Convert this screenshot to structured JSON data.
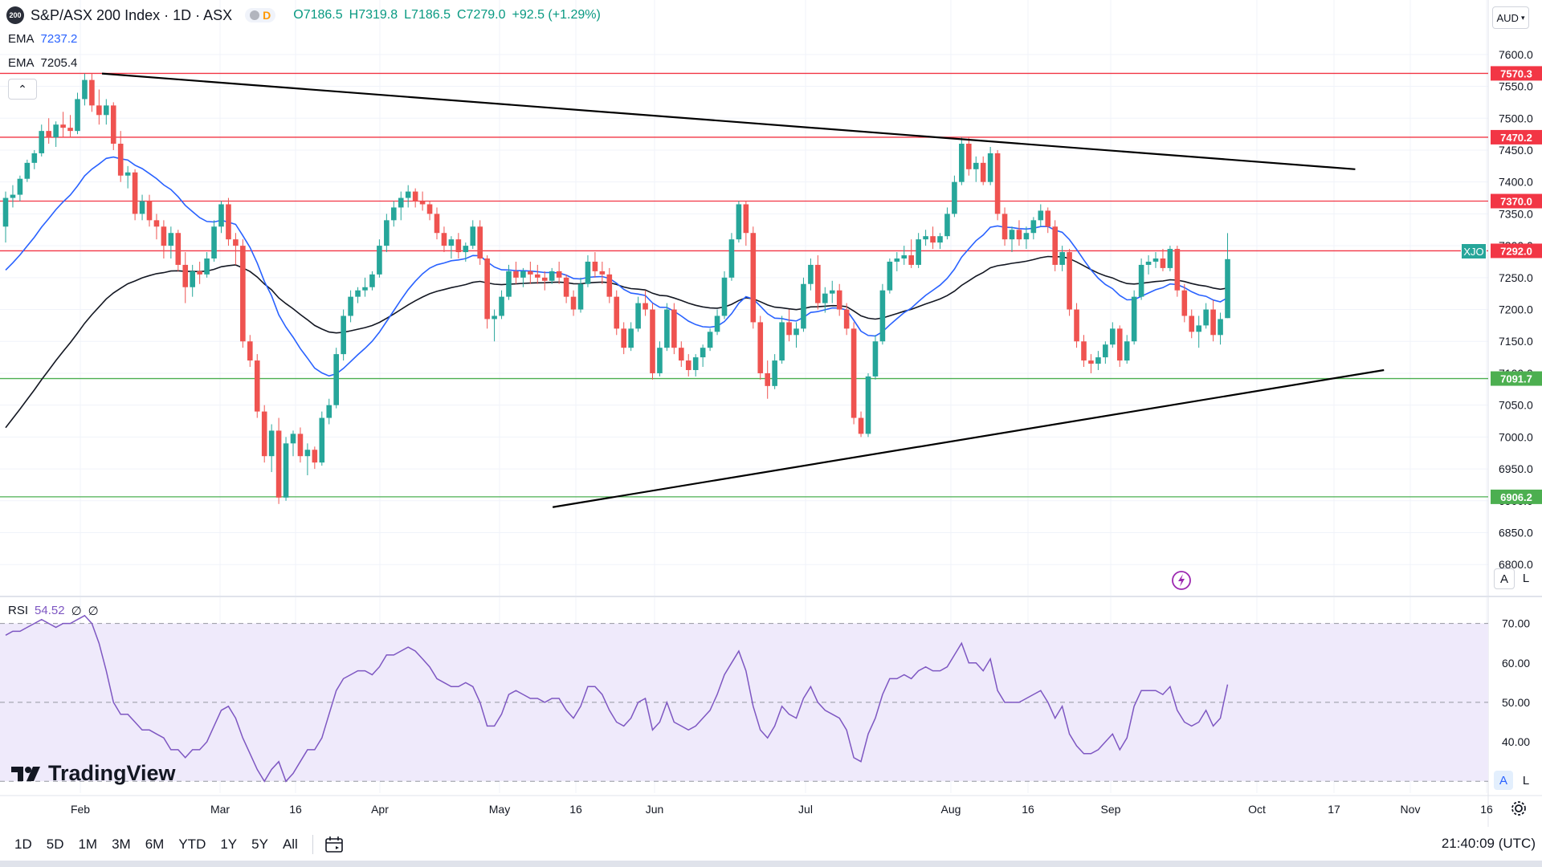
{
  "header": {
    "logo": "200",
    "title": "S&P/ASX 200 Index · 1D · ASX",
    "mode_badge": "D",
    "open": "O7186.5",
    "high": "H7319.8",
    "low": "L7186.5",
    "close": "C7279.0",
    "change": "+92.5 (+1.29%)"
  },
  "indicators": {
    "ema1_label": "EMA",
    "ema1_value": "7237.2",
    "ema2_label": "EMA",
    "ema2_value": "7205.4",
    "rsi_label": "RSI",
    "rsi_value": "54.52",
    "rsi_extra1": "∅",
    "rsi_extra2": "∅",
    "collapse_glyph": "⌃"
  },
  "currency": "AUD",
  "symbol_tag": "XJO",
  "toolbar": {
    "timeframes": [
      "1D",
      "5D",
      "1M",
      "3M",
      "6M",
      "YTD",
      "1Y",
      "5Y",
      "All"
    ],
    "clock": "21:40:09 (UTC)"
  },
  "brand": "TradingView",
  "buttons": {
    "auto": "A",
    "log": "L"
  },
  "colors": {
    "up": "#26a69a",
    "down": "#ef5350",
    "ema_fast": "#2962ff",
    "ema_slow": "#131722",
    "resistance": "#f23645",
    "support": "#4caf50",
    "rsi": "#7e57c2",
    "rsi_band": "#efeafb"
  },
  "chart_data": {
    "type": "candlestick",
    "ylim": [
      6760,
      7630
    ],
    "yticks": [
      6800,
      6850,
      6900,
      6950,
      7000,
      7050,
      7100,
      7150,
      7200,
      7250,
      7300,
      7350,
      7400,
      7450,
      7500,
      7550,
      7600
    ],
    "xticks": [
      "Feb",
      "Mar",
      "16",
      "Apr",
      "May",
      "16",
      "Jun",
      "Jul",
      "Aug",
      "16",
      "Sep",
      "Oct",
      "17",
      "Nov",
      "16"
    ],
    "horizontal_levels": [
      {
        "value": 7570.3,
        "label": "7570.3",
        "kind": "resistance"
      },
      {
        "value": 7470.2,
        "label": "7470.2",
        "kind": "resistance"
      },
      {
        "value": 7370.0,
        "label": "7370.0",
        "kind": "resistance"
      },
      {
        "value": 7292.0,
        "label": "7292.0",
        "kind": "resistance"
      },
      {
        "value": 7091.7,
        "label": "7091.7",
        "kind": "support"
      },
      {
        "value": 6906.2,
        "label": "6906.2",
        "kind": "support"
      }
    ],
    "trendlines": [
      {
        "from": [
          0,
          7570
        ],
        "to": [
          171,
          7420
        ]
      },
      {
        "from": [
          37,
          6890
        ],
        "to": [
          175,
          7105
        ]
      }
    ],
    "candles": [
      [
        7330,
        7385,
        7305,
        7375
      ],
      [
        7375,
        7395,
        7360,
        7380
      ],
      [
        7380,
        7410,
        7370,
        7405
      ],
      [
        7405,
        7435,
        7400,
        7430
      ],
      [
        7430,
        7450,
        7420,
        7445
      ],
      [
        7445,
        7490,
        7440,
        7480
      ],
      [
        7480,
        7500,
        7460,
        7470
      ],
      [
        7470,
        7495,
        7455,
        7490
      ],
      [
        7490,
        7510,
        7470,
        7485
      ],
      [
        7485,
        7505,
        7470,
        7480
      ],
      [
        7480,
        7540,
        7475,
        7530
      ],
      [
        7530,
        7570,
        7520,
        7560
      ],
      [
        7560,
        7570,
        7510,
        7520
      ],
      [
        7520,
        7545,
        7490,
        7505
      ],
      [
        7505,
        7530,
        7490,
        7520
      ],
      [
        7520,
        7525,
        7450,
        7460
      ],
      [
        7460,
        7480,
        7400,
        7410
      ],
      [
        7410,
        7425,
        7390,
        7415
      ],
      [
        7415,
        7420,
        7340,
        7350
      ],
      [
        7350,
        7380,
        7340,
        7370
      ],
      [
        7370,
        7380,
        7330,
        7340
      ],
      [
        7340,
        7350,
        7310,
        7330
      ],
      [
        7330,
        7340,
        7280,
        7300
      ],
      [
        7300,
        7330,
        7280,
        7320
      ],
      [
        7320,
        7325,
        7260,
        7270
      ],
      [
        7270,
        7290,
        7210,
        7235
      ],
      [
        7235,
        7270,
        7220,
        7260
      ],
      [
        7260,
        7275,
        7240,
        7255
      ],
      [
        7255,
        7290,
        7250,
        7280
      ],
      [
        7280,
        7340,
        7275,
        7330
      ],
      [
        7330,
        7370,
        7320,
        7365
      ],
      [
        7365,
        7375,
        7300,
        7310
      ],
      [
        7310,
        7320,
        7270,
        7300
      ],
      [
        7300,
        7310,
        7140,
        7150
      ],
      [
        7150,
        7160,
        7110,
        7120
      ],
      [
        7120,
        7130,
        7030,
        7040
      ],
      [
        7040,
        7050,
        6960,
        6970
      ],
      [
        6970,
        7020,
        6945,
        7010
      ],
      [
        7010,
        7030,
        6895,
        6905
      ],
      [
        6905,
        7000,
        6900,
        6990
      ],
      [
        6990,
        7010,
        6970,
        7005
      ],
      [
        7005,
        7015,
        6960,
        6970
      ],
      [
        6970,
        6990,
        6940,
        6980
      ],
      [
        6980,
        6985,
        6950,
        6960
      ],
      [
        6960,
        7040,
        6955,
        7030
      ],
      [
        7030,
        7060,
        7020,
        7050
      ],
      [
        7050,
        7140,
        7045,
        7130
      ],
      [
        7130,
        7200,
        7120,
        7190
      ],
      [
        7190,
        7230,
        7180,
        7220
      ],
      [
        7220,
        7235,
        7210,
        7230
      ],
      [
        7230,
        7250,
        7220,
        7235
      ],
      [
        7235,
        7260,
        7230,
        7255
      ],
      [
        7255,
        7310,
        7250,
        7300
      ],
      [
        7300,
        7350,
        7290,
        7340
      ],
      [
        7340,
        7370,
        7330,
        7360
      ],
      [
        7360,
        7385,
        7340,
        7375
      ],
      [
        7375,
        7395,
        7360,
        7385
      ],
      [
        7385,
        7390,
        7360,
        7370
      ],
      [
        7370,
        7385,
        7355,
        7365
      ],
      [
        7365,
        7370,
        7340,
        7350
      ],
      [
        7350,
        7360,
        7310,
        7320
      ],
      [
        7320,
        7330,
        7290,
        7300
      ],
      [
        7300,
        7315,
        7280,
        7310
      ],
      [
        7310,
        7320,
        7280,
        7290
      ],
      [
        7290,
        7305,
        7275,
        7300
      ],
      [
        7300,
        7340,
        7295,
        7330
      ],
      [
        7330,
        7340,
        7270,
        7280
      ],
      [
        7280,
        7285,
        7170,
        7185
      ],
      [
        7185,
        7200,
        7150,
        7190
      ],
      [
        7190,
        7230,
        7185,
        7220
      ],
      [
        7220,
        7270,
        7215,
        7260
      ],
      [
        7260,
        7275,
        7240,
        7250
      ],
      [
        7250,
        7265,
        7235,
        7260
      ],
      [
        7260,
        7275,
        7240,
        7255
      ],
      [
        7255,
        7270,
        7240,
        7250
      ],
      [
        7250,
        7260,
        7230,
        7245
      ],
      [
        7245,
        7265,
        7240,
        7260
      ],
      [
        7260,
        7275,
        7240,
        7250
      ],
      [
        7250,
        7255,
        7210,
        7220
      ],
      [
        7220,
        7230,
        7190,
        7200
      ],
      [
        7200,
        7250,
        7195,
        7240
      ],
      [
        7240,
        7285,
        7235,
        7275
      ],
      [
        7275,
        7290,
        7250,
        7260
      ],
      [
        7260,
        7275,
        7240,
        7255
      ],
      [
        7255,
        7265,
        7210,
        7220
      ],
      [
        7220,
        7230,
        7160,
        7170
      ],
      [
        7170,
        7180,
        7130,
        7140
      ],
      [
        7140,
        7180,
        7135,
        7170
      ],
      [
        7170,
        7220,
        7165,
        7210
      ],
      [
        7210,
        7230,
        7190,
        7200
      ],
      [
        7200,
        7210,
        7090,
        7100
      ],
      [
        7100,
        7150,
        7095,
        7140
      ],
      [
        7140,
        7210,
        7135,
        7200
      ],
      [
        7200,
        7210,
        7130,
        7140
      ],
      [
        7140,
        7150,
        7110,
        7120
      ],
      [
        7120,
        7130,
        7095,
        7105
      ],
      [
        7105,
        7130,
        7095,
        7125
      ],
      [
        7125,
        7145,
        7110,
        7140
      ],
      [
        7140,
        7170,
        7135,
        7165
      ],
      [
        7165,
        7200,
        7160,
        7190
      ],
      [
        7190,
        7260,
        7185,
        7250
      ],
      [
        7250,
        7320,
        7245,
        7310
      ],
      [
        7310,
        7370,
        7305,
        7365
      ],
      [
        7365,
        7370,
        7300,
        7320
      ],
      [
        7320,
        7330,
        7170,
        7180
      ],
      [
        7180,
        7190,
        7090,
        7100
      ],
      [
        7100,
        7120,
        7060,
        7080
      ],
      [
        7080,
        7130,
        7075,
        7120
      ],
      [
        7120,
        7190,
        7115,
        7180
      ],
      [
        7180,
        7200,
        7150,
        7160
      ],
      [
        7160,
        7180,
        7140,
        7170
      ],
      [
        7170,
        7250,
        7165,
        7240
      ],
      [
        7240,
        7280,
        7230,
        7270
      ],
      [
        7270,
        7285,
        7200,
        7210
      ],
      [
        7210,
        7235,
        7195,
        7225
      ],
      [
        7225,
        7245,
        7210,
        7230
      ],
      [
        7230,
        7240,
        7190,
        7200
      ],
      [
        7200,
        7210,
        7160,
        7170
      ],
      [
        7170,
        7180,
        7020,
        7030
      ],
      [
        7030,
        7040,
        7000,
        7005
      ],
      [
        7005,
        7100,
        7000,
        7095
      ],
      [
        7095,
        7160,
        7090,
        7150
      ],
      [
        7150,
        7240,
        7145,
        7230
      ],
      [
        7230,
        7280,
        7225,
        7275
      ],
      [
        7275,
        7290,
        7260,
        7280
      ],
      [
        7280,
        7300,
        7270,
        7285
      ],
      [
        7285,
        7310,
        7265,
        7270
      ],
      [
        7270,
        7320,
        7265,
        7310
      ],
      [
        7310,
        7325,
        7300,
        7315
      ],
      [
        7315,
        7330,
        7295,
        7305
      ],
      [
        7305,
        7320,
        7295,
        7315
      ],
      [
        7315,
        7360,
        7310,
        7350
      ],
      [
        7350,
        7410,
        7345,
        7400
      ],
      [
        7400,
        7470,
        7395,
        7460
      ],
      [
        7460,
        7470,
        7410,
        7420
      ],
      [
        7420,
        7440,
        7400,
        7430
      ],
      [
        7430,
        7440,
        7395,
        7400
      ],
      [
        7400,
        7455,
        7395,
        7445
      ],
      [
        7445,
        7450,
        7340,
        7350
      ],
      [
        7350,
        7360,
        7300,
        7310
      ],
      [
        7310,
        7330,
        7290,
        7325
      ],
      [
        7325,
        7340,
        7300,
        7310
      ],
      [
        7310,
        7330,
        7295,
        7320
      ],
      [
        7320,
        7345,
        7310,
        7340
      ],
      [
        7340,
        7365,
        7330,
        7355
      ],
      [
        7355,
        7360,
        7320,
        7330
      ],
      [
        7330,
        7340,
        7260,
        7270
      ],
      [
        7270,
        7300,
        7260,
        7290
      ],
      [
        7290,
        7295,
        7190,
        7200
      ],
      [
        7200,
        7210,
        7140,
        7150
      ],
      [
        7150,
        7160,
        7110,
        7120
      ],
      [
        7120,
        7130,
        7100,
        7115
      ],
      [
        7115,
        7135,
        7105,
        7125
      ],
      [
        7125,
        7150,
        7115,
        7145
      ],
      [
        7145,
        7180,
        7140,
        7170
      ],
      [
        7170,
        7175,
        7110,
        7120
      ],
      [
        7120,
        7160,
        7115,
        7150
      ],
      [
        7150,
        7230,
        7145,
        7220
      ],
      [
        7220,
        7280,
        7215,
        7270
      ],
      [
        7270,
        7285,
        7255,
        7275
      ],
      [
        7275,
        7290,
        7265,
        7280
      ],
      [
        7280,
        7295,
        7260,
        7265
      ],
      [
        7265,
        7300,
        7260,
        7295
      ],
      [
        7295,
        7300,
        7220,
        7230
      ],
      [
        7230,
        7240,
        7180,
        7190
      ],
      [
        7190,
        7200,
        7155,
        7165
      ],
      [
        7165,
        7190,
        7140,
        7175
      ],
      [
        7175,
        7210,
        7170,
        7200
      ],
      [
        7200,
        7215,
        7150,
        7160
      ],
      [
        7160,
        7195,
        7145,
        7185
      ],
      [
        7186.5,
        7319.8,
        7186.5,
        7279.0
      ]
    ],
    "rsi": {
      "ylim": [
        27,
        75
      ],
      "yticks": [
        40,
        50,
        60,
        70
      ],
      "band": [
        30,
        70
      ],
      "values": [
        67,
        68,
        68,
        69,
        70,
        71,
        70,
        69,
        70,
        70,
        71,
        72,
        70,
        65,
        58,
        50,
        47,
        47,
        45,
        43,
        43,
        42,
        41,
        38,
        38,
        36,
        38,
        38,
        40,
        44,
        48,
        49,
        46,
        41,
        37,
        33,
        30,
        33,
        35,
        30,
        32,
        35,
        38,
        38,
        41,
        47,
        53,
        56,
        57,
        58,
        58,
        57,
        59,
        62,
        62,
        63,
        64,
        63,
        61,
        59,
        56,
        55,
        54,
        54,
        55,
        54,
        50,
        44,
        44,
        47,
        52,
        53,
        52,
        51,
        51,
        50,
        51,
        51,
        48,
        46,
        49,
        54,
        54,
        52,
        48,
        45,
        44,
        46,
        50,
        51,
        43,
        45,
        50,
        45,
        44,
        43,
        44,
        46,
        48,
        52,
        57,
        60,
        63,
        58,
        49,
        43,
        41,
        44,
        49,
        47,
        46,
        51,
        54,
        50,
        48,
        47,
        46,
        43,
        36,
        35,
        42,
        46,
        52,
        56,
        56,
        57,
        56,
        58,
        59,
        58,
        58,
        59,
        62,
        65,
        60,
        60,
        58,
        61,
        53,
        50,
        50,
        50,
        51,
        52,
        53,
        50,
        46,
        49,
        42,
        39,
        37,
        37,
        38,
        40,
        42,
        38,
        41,
        49,
        53,
        53,
        53,
        52,
        54,
        48,
        45,
        44,
        45,
        48,
        44,
        46,
        54.52
      ]
    }
  }
}
